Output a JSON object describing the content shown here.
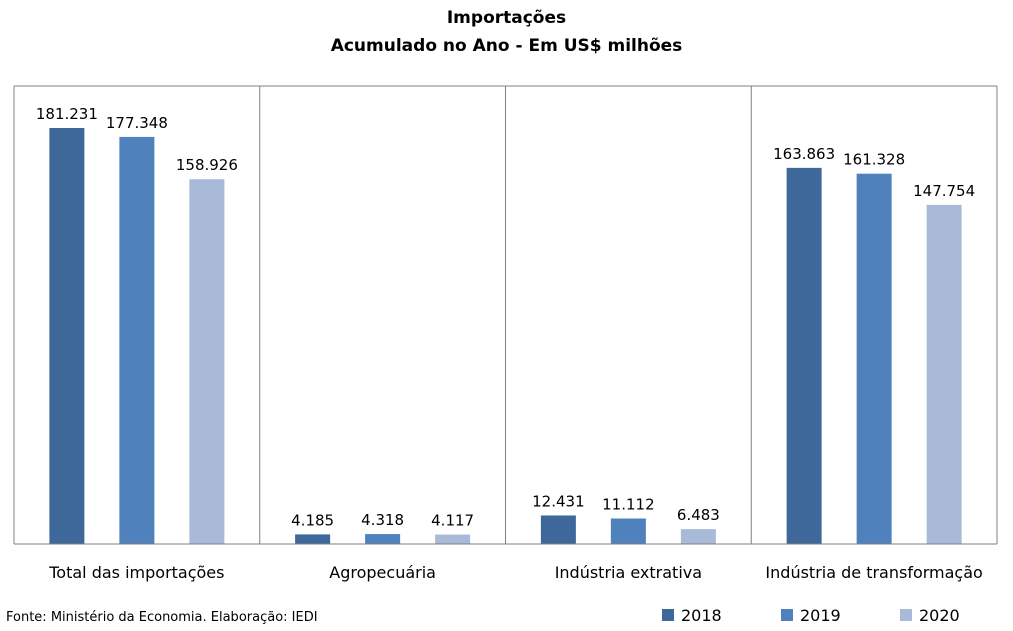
{
  "chart_data": {
    "type": "bar",
    "title": "Importações",
    "subtitle": "Acumulado no Ano - Em US$ milhões",
    "categories": [
      "Total das importações",
      "Agropecuária",
      "Indústria extrativa",
      "Indústria de transformação"
    ],
    "series": [
      {
        "name": "2018",
        "color": "#3d6899",
        "values": [
          181231,
          4185,
          12431,
          163863
        ],
        "labels": [
          "181.231",
          "4.185",
          "12.431",
          "163.863"
        ]
      },
      {
        "name": "2019",
        "color": "#4f81bd",
        "values": [
          177348,
          4318,
          11112,
          161328
        ],
        "labels": [
          "177.348",
          "4.318",
          "11.112",
          "161.328"
        ]
      },
      {
        "name": "2020",
        "color": "#a9b9d8",
        "values": [
          158926,
          4117,
          6483,
          147754
        ],
        "labels": [
          "158.926",
          "4.117",
          "6.483",
          "147.754"
        ]
      }
    ],
    "ylim": [
      0,
      181231
    ],
    "legend_position": "bottom-right",
    "grid": false
  },
  "source": "Fonte: Ministério da Economia. Elaboração: IEDI"
}
